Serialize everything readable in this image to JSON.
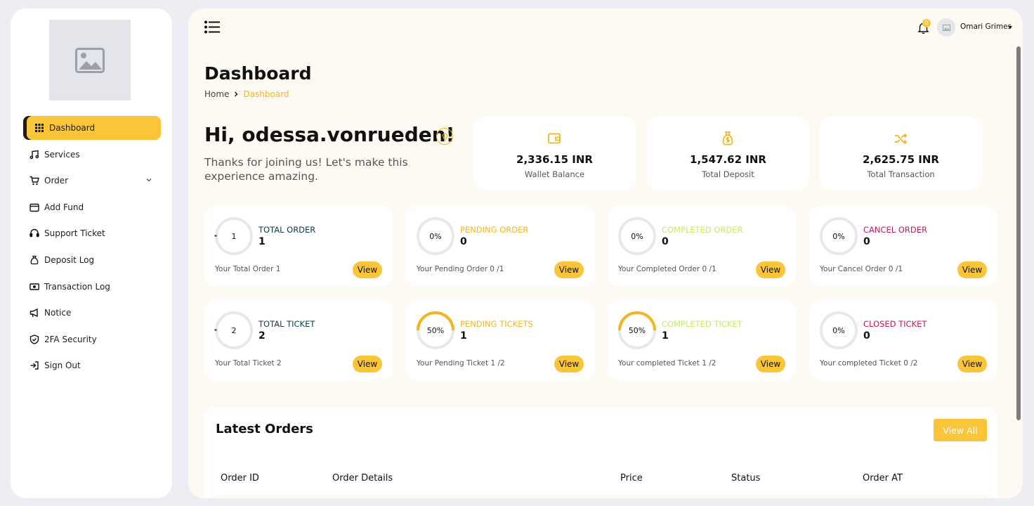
{
  "sidebar": {
    "logo_icon": "image-placeholder-icon",
    "items": [
      {
        "label": "Dashboard",
        "icon": "grid-icon",
        "active": true
      },
      {
        "label": "Services",
        "icon": "music-note-icon"
      },
      {
        "label": "Order",
        "icon": "cart-icon",
        "has_submenu": true
      },
      {
        "label": "Add Fund",
        "icon": "wallet-icon"
      },
      {
        "label": "Support Ticket",
        "icon": "headset-icon"
      },
      {
        "label": "Deposit Log",
        "icon": "money-bag-icon"
      },
      {
        "label": "Transaction Log",
        "icon": "money-bill-icon"
      },
      {
        "label": "Notice",
        "icon": "megaphone-icon"
      },
      {
        "label": "2FA Security",
        "icon": "shield-icon"
      },
      {
        "label": "Sign Out",
        "icon": "sign-out-icon"
      }
    ]
  },
  "header": {
    "menu_icon": "hamburger-list-icon",
    "notification_count": "0",
    "user_name": "Omari Grimes"
  },
  "page": {
    "title": "Dashboard",
    "breadcrumb": {
      "home": "Home",
      "current": "Dashboard"
    }
  },
  "welcome": {
    "greeting": "Hi, odessa.vonrueden!",
    "subtitle": "Thanks for joining us! Let's make this experience amazing."
  },
  "stats": [
    {
      "value": "2,336.15 INR",
      "label": "Wallet Balance",
      "icon": "wallet-icon"
    },
    {
      "value": "1,547.62 INR",
      "label": "Total Deposit",
      "icon": "money-bag-icon"
    },
    {
      "value": "2,625.75 INR",
      "label": "Total Transaction",
      "icon": "shuffle-icon"
    }
  ],
  "order_cards": [
    {
      "ring_text": "1",
      "title": "TOTAL ORDER",
      "count": "1",
      "desc": "Your Total Order 1",
      "button": "View",
      "progress": 0,
      "color": "#0d3b4c"
    },
    {
      "ring_text": "0%",
      "title": "PENDING ORDER",
      "count": "0",
      "desc": "Your Pending Order 0 /1",
      "button": "View",
      "progress": 0,
      "color": "#f5b51c"
    },
    {
      "ring_text": "0%",
      "title": "COMPLETED ORDER",
      "count": "0",
      "desc": "Your Completed Order 0 /1",
      "button": "View",
      "progress": 0,
      "color": "#c5ec5a"
    },
    {
      "ring_text": "0%",
      "title": "CANCEL ORDER",
      "count": "0",
      "desc": "Your Cancel Order 0 /1",
      "button": "View",
      "progress": 0,
      "color": "#c2185b"
    }
  ],
  "ticket_cards": [
    {
      "ring_text": "2",
      "title": "TOTAL TICKET",
      "count": "2",
      "desc": "Your Total Ticket 2",
      "button": "View",
      "progress": 0,
      "color": "#0d3b4c"
    },
    {
      "ring_text": "50%",
      "title": "PENDING TICKETS",
      "count": "1",
      "desc": "Your Pending Ticket 1 /2",
      "button": "View",
      "progress": 0.5,
      "color": "#f5b51c"
    },
    {
      "ring_text": "50%",
      "title": "COMPLETED TICKET",
      "count": "1",
      "desc": "Your completed Ticket 1 /2",
      "button": "View",
      "progress": 0.5,
      "color": "#c5ec5a"
    },
    {
      "ring_text": "0%",
      "title": "CLOSED TICKET",
      "count": "0",
      "desc": "Your completed Ticket 0 /2",
      "button": "View",
      "progress": 0,
      "color": "#c2185b"
    }
  ],
  "latest_orders": {
    "title": "Latest Orders",
    "view_all": "View All",
    "columns": [
      "Order ID",
      "Order Details",
      "Price",
      "Status",
      "Order AT"
    ]
  },
  "colors": {
    "accent": "#fbc53a",
    "accent_text": "#f5b51c"
  }
}
